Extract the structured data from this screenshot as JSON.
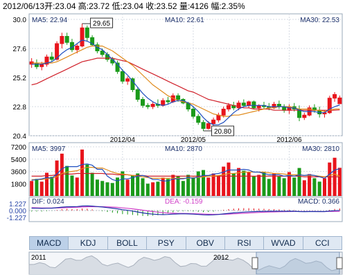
{
  "header": {
    "date": "2012/06/13",
    "open": "开:23.04",
    "high": "高:23.72",
    "low": "低:23.04",
    "close": "收:23.52",
    "volume": "量:4126",
    "change": "幅:2.35%"
  },
  "tabs": [
    "MACD",
    "KDJ",
    "BOLL",
    "PSY",
    "OBV",
    "RSI",
    "WVAD",
    "CCI"
  ],
  "active_tab": "MACD",
  "colors": {
    "up": "#e8141c",
    "down": "#1a9a1a",
    "ma5": "#1f4fbf",
    "ma10": "#e08a1a",
    "ma30": "#d0202a",
    "dif": "#1c2ea8",
    "dea": "#d040c8",
    "label": "#1a2f6a"
  },
  "chart_data": [
    {
      "type": "candlestick",
      "name": "price",
      "ylim": [
        20.4,
        30.0
      ],
      "yticks": [
        "30.0",
        "27.6",
        "25.2",
        "22.8",
        "20.4"
      ],
      "xticks": [
        "2012/04",
        "2012/05",
        "2012/06"
      ],
      "legend": {
        "ma5": "MA5: 22.94",
        "ma10": "MA10: 22.61",
        "ma30": "MA30: 22.53"
      },
      "annotations": [
        {
          "label": "29.65",
          "value": 29.65
        },
        {
          "label": "20.80",
          "value": 20.8
        }
      ],
      "ohlc": [
        [
          26.3,
          26.8,
          26.0,
          26.5
        ],
        [
          26.4,
          26.7,
          25.9,
          26.1
        ],
        [
          26.1,
          26.5,
          25.8,
          26.3
        ],
        [
          26.3,
          27.1,
          26.1,
          26.9
        ],
        [
          26.9,
          27.3,
          26.5,
          26.7
        ],
        [
          26.7,
          28.2,
          26.6,
          28.0
        ],
        [
          28.0,
          28.9,
          27.6,
          28.6
        ],
        [
          28.6,
          28.9,
          27.9,
          28.1
        ],
        [
          28.1,
          28.4,
          27.3,
          27.5
        ],
        [
          27.5,
          28.0,
          27.2,
          27.8
        ],
        [
          27.8,
          29.65,
          27.7,
          29.3
        ],
        [
          29.3,
          29.5,
          28.2,
          28.5
        ],
        [
          28.5,
          28.7,
          27.8,
          27.9
        ],
        [
          27.9,
          28.1,
          27.2,
          27.4
        ],
        [
          27.4,
          27.6,
          26.9,
          27.1
        ],
        [
          27.1,
          27.3,
          26.5,
          26.7
        ],
        [
          26.7,
          26.9,
          26.2,
          26.4
        ],
        [
          26.4,
          26.6,
          25.5,
          25.7
        ],
        [
          25.7,
          25.9,
          24.7,
          24.9
        ],
        [
          24.9,
          25.3,
          24.6,
          25.1
        ],
        [
          25.1,
          25.2,
          24.0,
          24.2
        ],
        [
          24.2,
          24.4,
          23.2,
          23.4
        ],
        [
          23.4,
          23.6,
          22.7,
          22.9
        ],
        [
          22.9,
          23.1,
          22.6,
          22.8
        ],
        [
          22.8,
          23.2,
          22.6,
          23.0
        ],
        [
          23.0,
          23.4,
          22.7,
          22.9
        ],
        [
          22.9,
          23.5,
          22.8,
          23.3
        ],
        [
          23.3,
          23.6,
          23.0,
          23.2
        ],
        [
          23.2,
          23.9,
          23.1,
          23.7
        ],
        [
          23.7,
          23.9,
          23.2,
          23.4
        ],
        [
          23.4,
          23.5,
          23.0,
          23.1
        ],
        [
          23.1,
          23.2,
          22.4,
          22.6
        ],
        [
          22.6,
          22.8,
          21.8,
          22.0
        ],
        [
          22.0,
          22.2,
          21.3,
          21.5
        ],
        [
          21.5,
          21.7,
          20.8,
          21.0
        ],
        [
          21.0,
          21.6,
          20.9,
          21.4
        ],
        [
          21.4,
          21.9,
          21.2,
          21.7
        ],
        [
          21.7,
          22.3,
          21.5,
          22.1
        ],
        [
          22.1,
          22.8,
          21.9,
          22.6
        ],
        [
          22.6,
          23.1,
          22.4,
          22.9
        ],
        [
          22.9,
          23.2,
          22.5,
          22.7
        ],
        [
          22.7,
          23.3,
          22.5,
          23.1
        ],
        [
          23.1,
          23.4,
          22.8,
          22.9
        ],
        [
          22.9,
          23.3,
          22.7,
          23.2
        ],
        [
          23.2,
          23.3,
          22.6,
          22.7
        ],
        [
          22.7,
          23.0,
          22.4,
          22.9
        ],
        [
          22.9,
          23.2,
          22.6,
          22.8
        ],
        [
          22.8,
          23.1,
          22.5,
          22.7
        ],
        [
          22.7,
          23.2,
          22.6,
          23.0
        ],
        [
          23.0,
          23.3,
          22.6,
          22.8
        ],
        [
          22.8,
          23.0,
          22.3,
          22.5
        ],
        [
          22.5,
          23.0,
          22.2,
          22.8
        ],
        [
          22.8,
          23.1,
          22.4,
          22.6
        ],
        [
          22.6,
          22.9,
          21.6,
          21.9
        ],
        [
          21.9,
          22.3,
          21.7,
          22.1
        ],
        [
          22.1,
          22.9,
          22.0,
          22.7
        ],
        [
          22.7,
          23.0,
          22.3,
          22.5
        ],
        [
          22.5,
          22.8,
          21.9,
          22.2
        ],
        [
          22.2,
          22.5,
          21.9,
          22.3
        ],
        [
          22.3,
          23.7,
          22.2,
          23.5
        ],
        [
          23.5,
          24.0,
          23.2,
          23.8
        ],
        [
          23.04,
          23.72,
          23.04,
          23.52
        ]
      ],
      "ma5": [
        26.3,
        26.3,
        26.3,
        26.4,
        26.5,
        26.8,
        27.2,
        27.5,
        27.7,
        28.0,
        28.3,
        28.2,
        28.0,
        27.7,
        27.5,
        27.1,
        26.7,
        26.3,
        25.8,
        25.4,
        24.9,
        24.4,
        23.9,
        23.5,
        23.2,
        23.0,
        22.9,
        23.0,
        23.2,
        23.3,
        23.3,
        23.1,
        22.8,
        22.4,
        21.9,
        21.5,
        21.3,
        21.3,
        21.5,
        21.9,
        22.3,
        22.6,
        22.8,
        22.9,
        22.9,
        22.9,
        22.9,
        22.8,
        22.8,
        22.8,
        22.8,
        22.7,
        22.7,
        22.5,
        22.4,
        22.4,
        22.4,
        22.3,
        22.3,
        22.6,
        22.8,
        22.94
      ],
      "ma10": [
        26.4,
        26.4,
        26.4,
        26.4,
        26.4,
        26.5,
        26.7,
        26.9,
        27.1,
        27.3,
        27.5,
        27.7,
        27.8,
        27.8,
        27.8,
        27.6,
        27.4,
        27.1,
        26.8,
        26.5,
        26.2,
        25.8,
        25.4,
        25.0,
        24.6,
        24.3,
        24.0,
        23.7,
        23.5,
        23.3,
        23.2,
        23.1,
        23.0,
        22.8,
        22.6,
        22.4,
        22.2,
        22.1,
        22.0,
        22.0,
        22.1,
        22.1,
        22.2,
        22.3,
        22.4,
        22.5,
        22.6,
        22.7,
        22.7,
        22.8,
        22.8,
        22.8,
        22.7,
        22.6,
        22.6,
        22.6,
        22.5,
        22.5,
        22.4,
        22.5,
        22.6,
        22.61
      ],
      "ma30": [
        24.6,
        24.7,
        24.9,
        25.1,
        25.3,
        25.5,
        25.7,
        25.9,
        26.1,
        26.3,
        26.5,
        26.6,
        26.7,
        26.8,
        26.8,
        26.8,
        26.8,
        26.7,
        26.6,
        26.5,
        26.3,
        26.1,
        25.9,
        25.7,
        25.5,
        25.3,
        25.1,
        24.9,
        24.7,
        24.5,
        24.3,
        24.1,
        24.0,
        23.8,
        23.6,
        23.4,
        23.3,
        23.2,
        23.1,
        23.0,
        22.9,
        22.8,
        22.7,
        22.7,
        22.6,
        22.6,
        22.6,
        22.6,
        22.5,
        22.5,
        22.5,
        22.5,
        22.5,
        22.5,
        22.5,
        22.5,
        22.5,
        22.5,
        22.5,
        22.5,
        22.5,
        22.53
      ]
    },
    {
      "type": "bar",
      "name": "volume",
      "ylim": [
        0,
        7200
      ],
      "yticks": [
        "7200",
        "5400",
        "3600",
        "1800"
      ],
      "legend": {
        "ma5": "MA5: 3997",
        "ma10": "MA10: 2870",
        "ma30": "MA30: 2810"
      },
      "values": [
        2200,
        2500,
        2100,
        3400,
        2800,
        5200,
        6200,
        4400,
        3000,
        2700,
        6800,
        4600,
        3400,
        2400,
        2200,
        2000,
        1900,
        2700,
        3600,
        2400,
        3000,
        3300,
        2600,
        1800,
        2000,
        2100,
        2700,
        2500,
        3100,
        2900,
        2200,
        3100,
        2600,
        3600,
        3800,
        2700,
        3300,
        3000,
        4300,
        4900,
        3300,
        4100,
        3700,
        3500,
        2900,
        3100,
        3500,
        2500,
        3300,
        2900,
        2600,
        3500,
        2700,
        4100,
        2300,
        3200,
        2600,
        2100,
        2600,
        4900,
        5600,
        4126
      ],
      "ma5": [
        2300,
        2400,
        2500,
        2700,
        2600,
        3200,
        4000,
        4300,
        4300,
        4300,
        4600,
        4700,
        4500,
        3900,
        3900,
        2900,
        2400,
        2200,
        2500,
        2500,
        2700,
        2900,
        3000,
        2800,
        2400,
        2400,
        2200,
        2200,
        2500,
        2500,
        2500,
        2700,
        2600,
        2800,
        3000,
        3000,
        3200,
        3300,
        3500,
        3800,
        3800,
        3800,
        3900,
        3800,
        3500,
        3500,
        3300,
        3100,
        3100,
        3100,
        2900,
        3000,
        2900,
        3100,
        3000,
        3100,
        3000,
        2800,
        2600,
        3200,
        3800,
        3997
      ],
      "ma10": [
        2400,
        2400,
        2400,
        2500,
        2600,
        2800,
        3300,
        3500,
        3600,
        3700,
        4000,
        4200,
        4200,
        4100,
        4100,
        3800,
        3500,
        3300,
        3200,
        3100,
        3000,
        2900,
        2800,
        2700,
        2600,
        2600,
        2600,
        2600,
        2600,
        2600,
        2600,
        2600,
        2700,
        2700,
        2800,
        2900,
        2900,
        3000,
        3100,
        3300,
        3300,
        3400,
        3500,
        3500,
        3500,
        3500,
        3500,
        3400,
        3300,
        3300,
        3200,
        3100,
        3100,
        3100,
        3000,
        3000,
        3000,
        2900,
        2800,
        3000,
        3200,
        2870
      ],
      "ma30": [
        2900,
        2900,
        2900,
        3000,
        3000,
        3100,
        3200,
        3200,
        3200,
        3300,
        3300,
        3300,
        3300,
        3300,
        3300,
        3200,
        3200,
        3100,
        3100,
        3100,
        3000,
        3000,
        3000,
        2900,
        2900,
        2900,
        2900,
        2900,
        2900,
        2900,
        2900,
        2900,
        2900,
        2900,
        2900,
        2900,
        2900,
        2900,
        2900,
        2900,
        2900,
        2900,
        2900,
        2900,
        2900,
        2900,
        2900,
        2900,
        2900,
        2900,
        2900,
        2900,
        2900,
        2900,
        2800,
        2800,
        2800,
        2800,
        2800,
        2800,
        2800,
        2810
      ]
    },
    {
      "type": "macd",
      "name": "macd",
      "ylim": [
        -1.227,
        1.227
      ],
      "yticks": [
        "1.227",
        "0.000",
        "-1.227"
      ],
      "legend": {
        "dif": "DIF: 0.024",
        "dea": "DEA: -0.159",
        "macd": "MACD: 0.366"
      },
      "dif": [
        0.42,
        0.4,
        0.38,
        0.4,
        0.42,
        0.5,
        0.6,
        0.66,
        0.68,
        0.7,
        0.8,
        0.82,
        0.78,
        0.7,
        0.62,
        0.52,
        0.42,
        0.3,
        0.15,
        0.04,
        -0.1,
        -0.26,
        -0.42,
        -0.55,
        -0.64,
        -0.7,
        -0.72,
        -0.7,
        -0.64,
        -0.6,
        -0.58,
        -0.6,
        -0.64,
        -0.7,
        -0.76,
        -0.78,
        -0.76,
        -0.7,
        -0.6,
        -0.5,
        -0.42,
        -0.34,
        -0.28,
        -0.22,
        -0.2,
        -0.17,
        -0.15,
        -0.14,
        -0.12,
        -0.12,
        -0.13,
        -0.12,
        -0.13,
        -0.18,
        -0.2,
        -0.18,
        -0.18,
        -0.19,
        -0.18,
        -0.1,
        -0.02,
        0.024
      ],
      "dea": [
        0.5,
        0.48,
        0.46,
        0.45,
        0.44,
        0.45,
        0.48,
        0.51,
        0.55,
        0.58,
        0.62,
        0.66,
        0.68,
        0.69,
        0.68,
        0.65,
        0.61,
        0.55,
        0.47,
        0.39,
        0.29,
        0.18,
        0.06,
        -0.06,
        -0.18,
        -0.28,
        -0.37,
        -0.44,
        -0.48,
        -0.51,
        -0.52,
        -0.54,
        -0.56,
        -0.59,
        -0.62,
        -0.65,
        -0.67,
        -0.68,
        -0.66,
        -0.63,
        -0.59,
        -0.54,
        -0.49,
        -0.43,
        -0.39,
        -0.34,
        -0.3,
        -0.27,
        -0.24,
        -0.22,
        -0.2,
        -0.18,
        -0.17,
        -0.17,
        -0.17,
        -0.17,
        -0.17,
        -0.18,
        -0.18,
        -0.16,
        -0.16,
        -0.159
      ]
    },
    {
      "type": "area",
      "name": "navigator",
      "labels": [
        "2011",
        "2012"
      ]
    }
  ]
}
